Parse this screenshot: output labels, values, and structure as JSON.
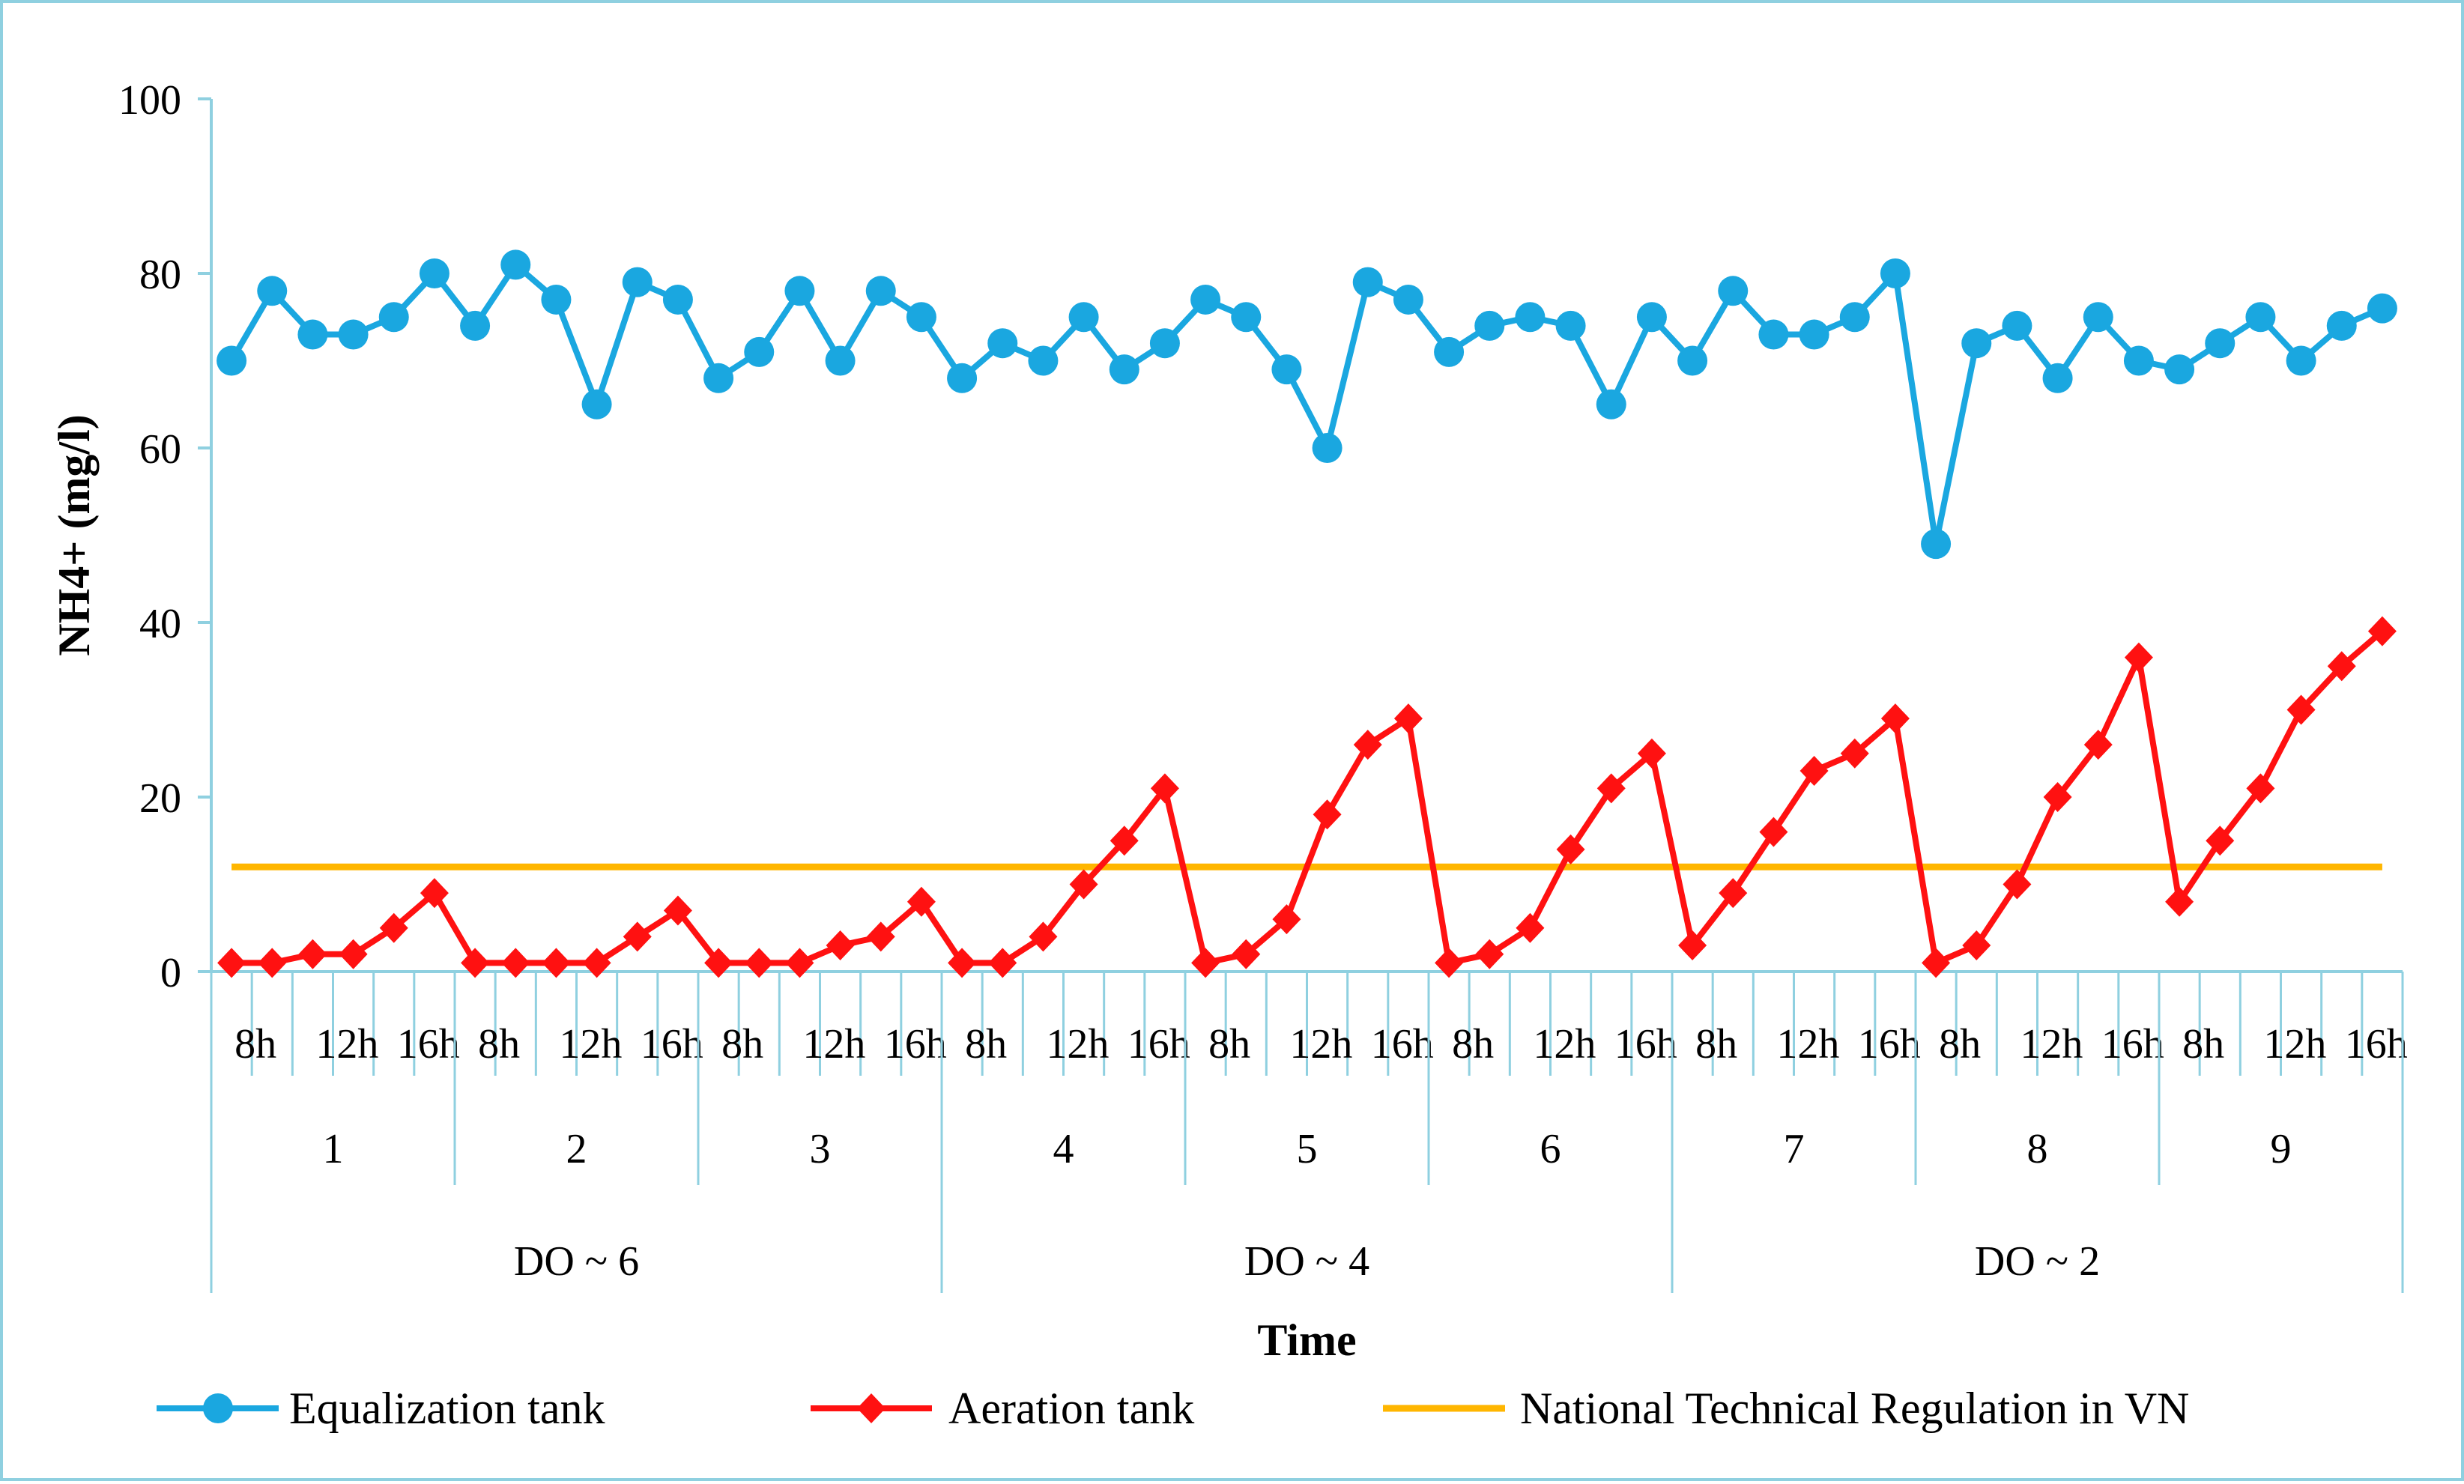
{
  "chart_data": {
    "type": "line",
    "title": "",
    "xlabel": "Time",
    "ylabel": "NH4+ (mg/l)",
    "ylim": [
      0,
      100
    ],
    "y_ticks": [
      0,
      20,
      40,
      60,
      80,
      100
    ],
    "grid": false,
    "legend_position": "bottom",
    "hour_labels": [
      "8h",
      "12h",
      "16h"
    ],
    "day_labels": [
      "1",
      "2",
      "3",
      "4",
      "5",
      "6",
      "7",
      "8",
      "9"
    ],
    "do_labels": [
      "DO ~ 6",
      "DO ~ 4",
      "DO ~ 2"
    ],
    "points_per_day": 6,
    "series": [
      {
        "name": "Equalization tank",
        "color": "#1aa7e0",
        "marker": "circle",
        "values": [
          70,
          78,
          73,
          73,
          75,
          80,
          74,
          81,
          77,
          65,
          79,
          77,
          68,
          71,
          78,
          70,
          78,
          75,
          68,
          72,
          70,
          75,
          69,
          72,
          77,
          75,
          69,
          60,
          79,
          77,
          71,
          74,
          75,
          74,
          65,
          75,
          70,
          78,
          73,
          73,
          75,
          80,
          49,
          72,
          74,
          68,
          75,
          70,
          69,
          72,
          75,
          70,
          74,
          76
        ]
      },
      {
        "name": "Aeration tank",
        "color": "#ff1111",
        "marker": "diamond",
        "values": [
          1,
          1,
          2,
          2,
          5,
          9,
          1,
          1,
          1,
          1,
          4,
          7,
          1,
          1,
          1,
          3,
          4,
          8,
          1,
          1,
          4,
          10,
          15,
          21,
          1,
          2,
          6,
          18,
          26,
          29,
          1,
          2,
          5,
          14,
          21,
          25,
          3,
          9,
          16,
          23,
          25,
          29,
          1,
          3,
          10,
          20,
          26,
          36,
          8,
          15,
          21,
          30,
          35,
          39
        ]
      },
      {
        "name": "National Technical Regulation in VN",
        "color": "#ffb600",
        "marker": "none",
        "constant": 12
      }
    ]
  }
}
